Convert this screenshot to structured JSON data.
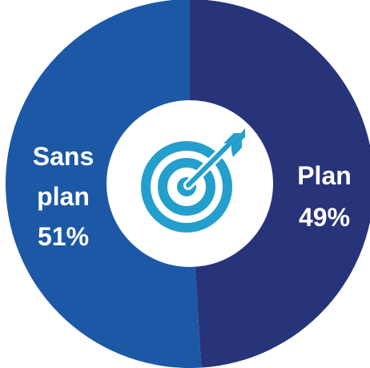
{
  "chart_data": {
    "type": "pie",
    "title": "",
    "slices": [
      {
        "label_lines": [
          "Plan",
          "49%"
        ],
        "value": 49,
        "color": "#283479"
      },
      {
        "label_lines": [
          "Sans",
          "plan",
          "51%"
        ],
        "value": 51,
        "color": "#1c58a6"
      }
    ],
    "center_icon": "target-icon",
    "icon_color": "#239fcd",
    "background": "#ffffff"
  }
}
